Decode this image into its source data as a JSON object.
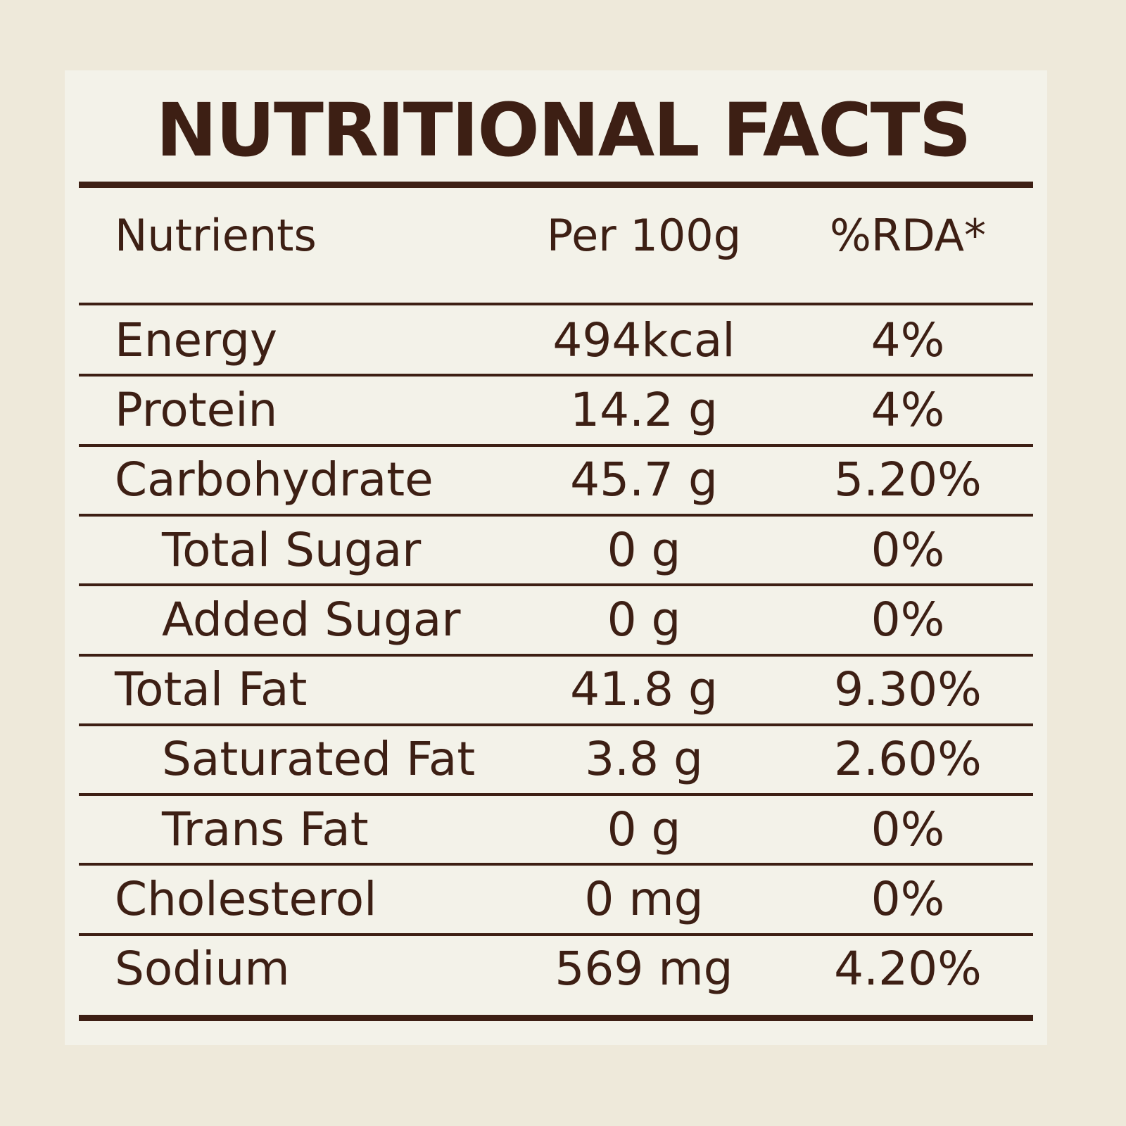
{
  "title": "NUTRITIONAL FACTS",
  "table": {
    "header": [
      "Nutrients",
      "Per 100g",
      "%RDA*"
    ],
    "rows": [
      {
        "cells": [
          "Energy",
          "494kcal",
          "4%"
        ]
      },
      {
        "cells": [
          "Protein",
          "14.2 g",
          "4%"
        ]
      },
      {
        "cells": [
          "Carbohydrate",
          "45.7 g",
          "5.20%"
        ],
        "children": [
          [
            "Total Sugar",
            "0 g",
            "0%"
          ],
          [
            "Added Sugar",
            "0 g",
            "0%"
          ]
        ]
      },
      {
        "cells": [
          "Total Fat",
          "41.8 g",
          "9.30%"
        ],
        "children": [
          [
            "Saturated Fat",
            "3.8 g",
            "2.60%"
          ],
          [
            "Trans Fat",
            "0 g",
            "0%"
          ]
        ]
      },
      {
        "cells": [
          "Cholesterol",
          "0 mg",
          "0%"
        ]
      },
      {
        "cells": [
          "Sodium",
          "569 mg",
          "4.20%"
        ]
      }
    ]
  }
}
